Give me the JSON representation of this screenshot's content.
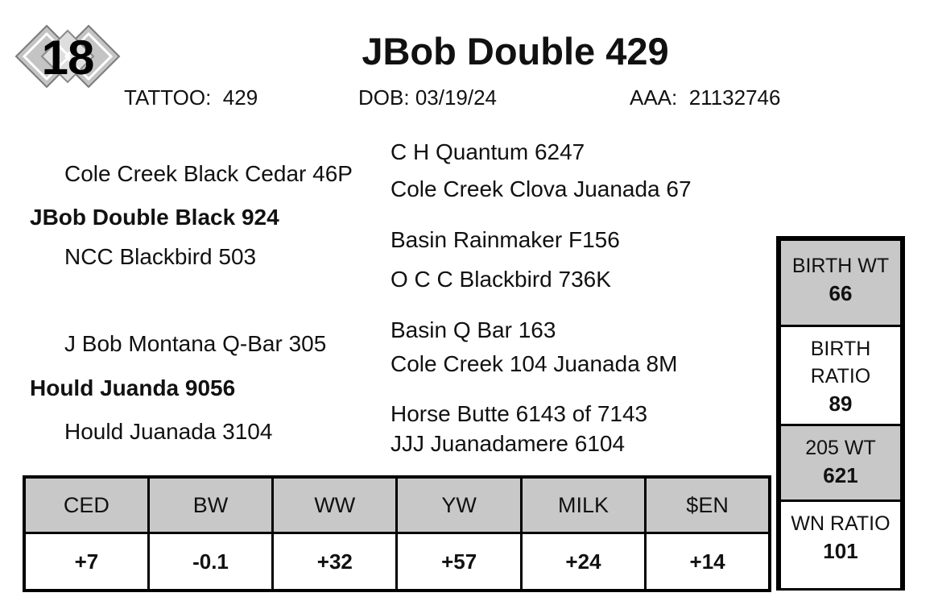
{
  "lot": "18",
  "animal": {
    "name": "JBob Double 429",
    "tattoo_label": "TATTOO:",
    "tattoo": "429",
    "dob_label": "DOB:",
    "dob": "03/19/24",
    "aaa_label": "AAA:",
    "aaa": "21132746"
  },
  "pedigree": {
    "sire": "JBob Double Black 924",
    "sire_sire": "Cole Creek Black Cedar 46P",
    "sire_sire_sire": "C H Quantum 6247",
    "sire_sire_dam": "Cole Creek Clova Juanada 67",
    "sire_dam": "NCC Blackbird 503",
    "sire_dam_sire": "Basin Rainmaker F156",
    "sire_dam_dam": "O C C Blackbird 736K",
    "dam": "Hould Juanda 9056",
    "dam_sire": "J Bob Montana Q-Bar 305",
    "dam_sire_sire": "Basin Q Bar 163",
    "dam_sire_dam": "Cole Creek 104 Juanada 8M",
    "dam_dam": "Hould Juanada 3104",
    "dam_dam_sire": "Horse Butte 6143 of 7143",
    "dam_dam_dam": "JJJ Juanadamere 6104"
  },
  "epds": [
    {
      "label": "CED",
      "value": "+7"
    },
    {
      "label": "BW",
      "value": "-0.1"
    },
    {
      "label": "WW",
      "value": "+32"
    },
    {
      "label": "YW",
      "value": "+57"
    },
    {
      "label": "MILK",
      "value": "+24"
    },
    {
      "label": "$EN",
      "value": "+14"
    }
  ],
  "stats": {
    "birth_wt_label": "BIRTH WT",
    "birth_wt": "66",
    "birth_ratio_label_1": "BIRTH",
    "birth_ratio_label_2": "RATIO",
    "birth_ratio": "89",
    "wt205_label": "205 WT",
    "wt205": "621",
    "wn_ratio_label": "WN RATIO",
    "wn_ratio": "101"
  },
  "colors": {
    "header_fill": "#c8c8c8",
    "badge_fill": "#c4c4c4",
    "text": "#111111"
  },
  "icons": {
    "badge": "diamond-lot-badge-icon"
  }
}
